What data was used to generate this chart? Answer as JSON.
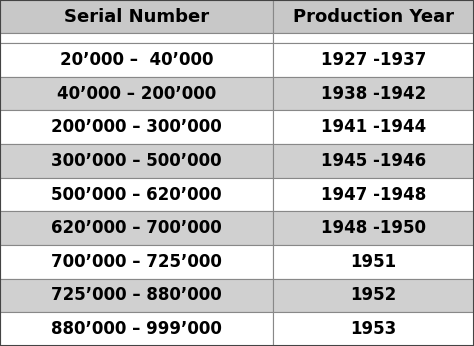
{
  "headers": [
    "Serial Number",
    "Production Year"
  ],
  "rows": [
    [
      "20’000 –  40’000",
      "1927 -1937"
    ],
    [
      "40’000 – 200’000",
      "1938 -1942"
    ],
    [
      "200’000 – 300’000",
      "1941 -1944"
    ],
    [
      "300’000 – 500’000",
      "1945 -1946"
    ],
    [
      "500’000 – 620’000",
      "1947 -1948"
    ],
    [
      "620’000 – 700’000",
      "1948 -1950"
    ],
    [
      "700’000 – 725’000",
      "1951"
    ],
    [
      "725’000 – 880’000",
      "1952"
    ],
    [
      "880’000 – 999’000",
      "1953"
    ]
  ],
  "header_bg": "#c8c8c8",
  "row_bg_white": "#ffffff",
  "row_bg_gray": "#d0d0d0",
  "row_colors": [
    "#ffffff",
    "#d0d0d0",
    "#ffffff",
    "#d0d0d0",
    "#ffffff",
    "#d0d0d0",
    "#ffffff",
    "#d0d0d0",
    "#ffffff"
  ],
  "header_font_size": 13,
  "row_font_size": 12,
  "border_color": "#888888",
  "text_color": "#000000",
  "col_split": 0.575
}
